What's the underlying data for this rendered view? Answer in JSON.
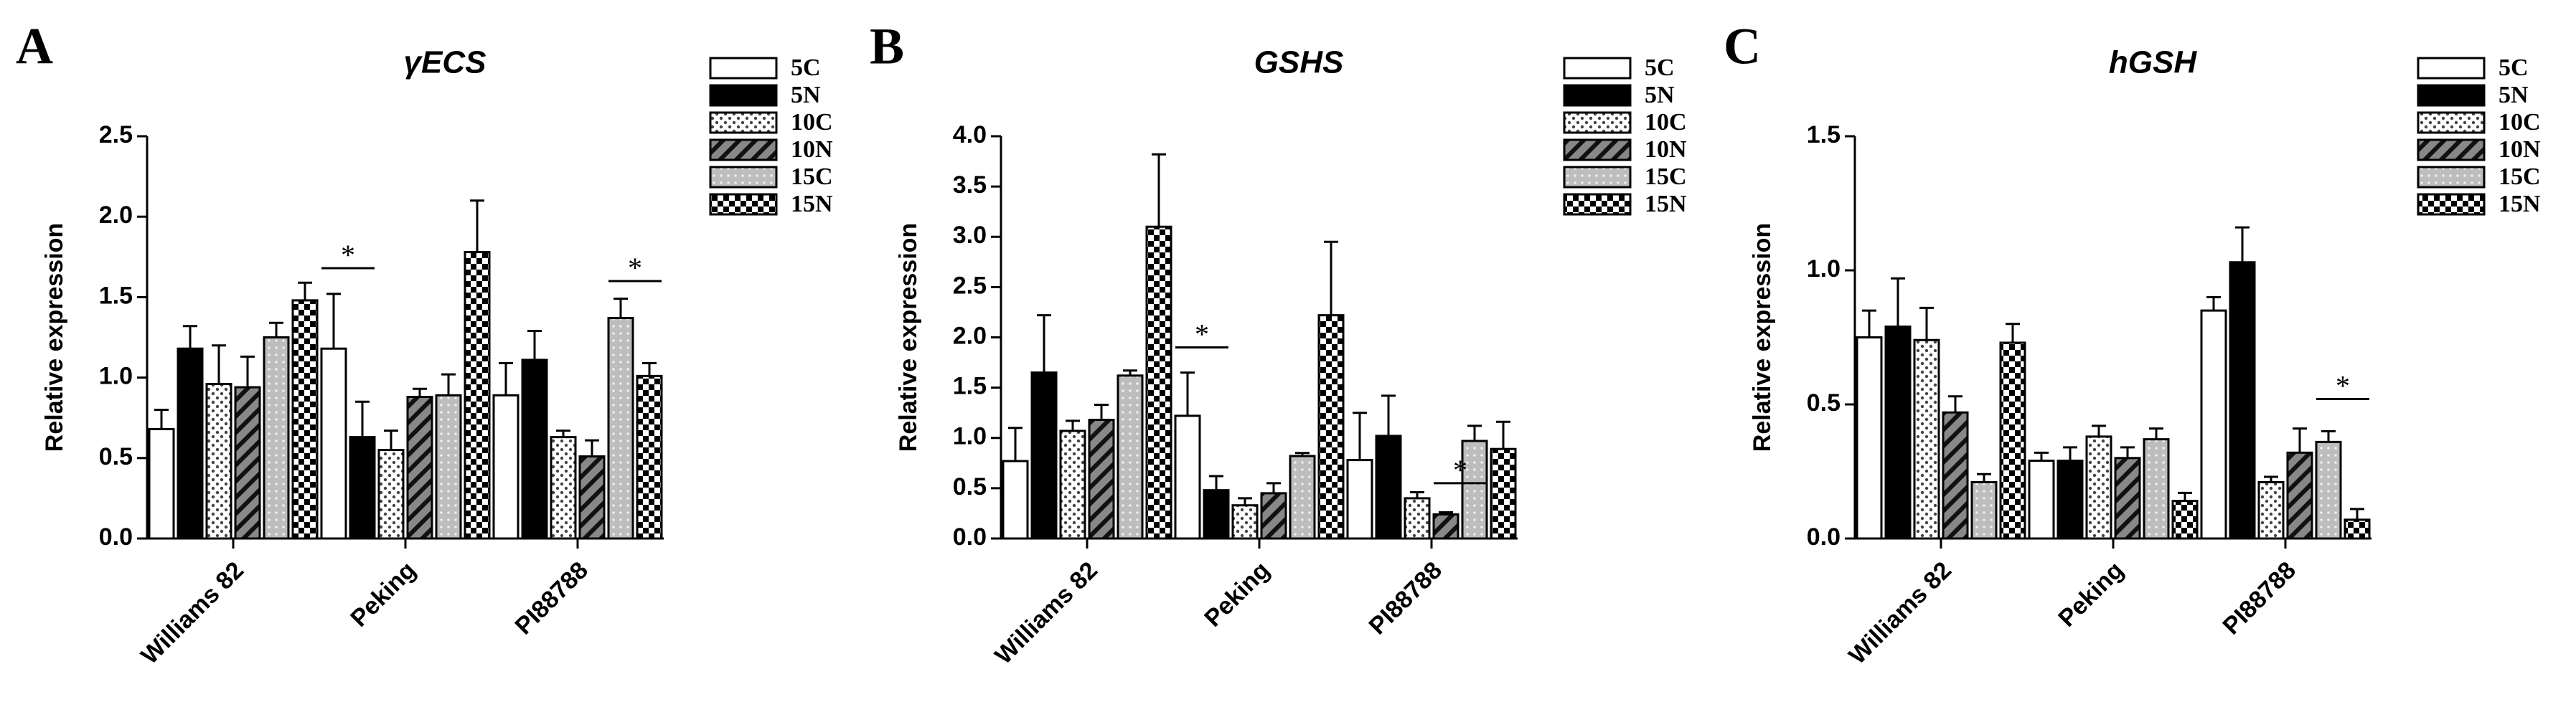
{
  "chart_data": [
    {
      "type": "bar",
      "panel": "A",
      "title": "γECS",
      "y_label": "Relative expression",
      "categories": [
        "Williams 82",
        "Peking",
        "PI88788"
      ],
      "ylim": [
        0,
        2.5
      ],
      "yticks": [
        {
          "value": 0,
          "label": "0.0"
        },
        0.5,
        {
          "value": 1,
          "label": "1.0"
        },
        1.5,
        {
          "value": 2,
          "label": "2.0"
        },
        2.5
      ],
      "series": [
        {
          "name": "5C",
          "color": "#ffffff",
          "pattern": "solid",
          "values": [
            0.68,
            1.18,
            0.89
          ],
          "errors": [
            0.12,
            0.34,
            0.2
          ]
        },
        {
          "name": "5N",
          "color": "#000000",
          "pattern": "solid",
          "values": [
            1.18,
            0.63,
            1.11
          ],
          "errors": [
            0.14,
            0.22,
            0.18
          ]
        },
        {
          "name": "10C",
          "color": "#ffffff",
          "pattern": "dots",
          "values": [
            0.96,
            0.55,
            0.63
          ],
          "errors": [
            0.24,
            0.12,
            0.04
          ]
        },
        {
          "name": "10N",
          "color": "#666666",
          "pattern": "hatch",
          "values": [
            0.94,
            0.88,
            0.51
          ],
          "errors": [
            0.19,
            0.05,
            0.1
          ]
        },
        {
          "name": "15C",
          "color": "#bbbbbb",
          "pattern": "lightdots",
          "values": [
            1.25,
            0.89,
            1.37
          ],
          "errors": [
            0.09,
            0.13,
            0.12
          ]
        },
        {
          "name": "15N",
          "color": "#000000",
          "pattern": "checker",
          "values": [
            1.48,
            1.78,
            1.01
          ],
          "errors": [
            0.11,
            0.32,
            0.08
          ]
        }
      ],
      "annotations": [
        {
          "text": "*",
          "category": 1,
          "series": [
            0,
            1
          ],
          "y": 1.68
        },
        {
          "text": "*",
          "category": 2,
          "series": [
            4,
            5
          ],
          "y": 1.6
        }
      ]
    },
    {
      "type": "bar",
      "panel": "B",
      "title": "GSHS",
      "y_label": "Relative expression",
      "categories": [
        "Williams 82",
        "Peking",
        "PI88788"
      ],
      "ylim": [
        0,
        4
      ],
      "yticks": [
        {
          "value": 0,
          "label": "0.0"
        },
        0.5,
        {
          "value": 1,
          "label": "1.0"
        },
        1.5,
        {
          "value": 2,
          "label": "2.0"
        },
        2.5,
        {
          "value": 3,
          "label": "3.0"
        },
        3.5,
        {
          "value": 4,
          "label": "4.0"
        }
      ],
      "series": [
        {
          "name": "5C",
          "color": "#ffffff",
          "pattern": "solid",
          "values": [
            0.77,
            1.22,
            0.78
          ],
          "errors": [
            0.33,
            0.43,
            0.47
          ]
        },
        {
          "name": "5N",
          "color": "#000000",
          "pattern": "solid",
          "values": [
            1.65,
            0.48,
            1.02
          ],
          "errors": [
            0.57,
            0.14,
            0.4
          ]
        },
        {
          "name": "10C",
          "color": "#ffffff",
          "pattern": "dots",
          "values": [
            1.07,
            0.33,
            0.4
          ],
          "errors": [
            0.1,
            0.07,
            0.06
          ]
        },
        {
          "name": "10N",
          "color": "#666666",
          "pattern": "hatch",
          "values": [
            1.18,
            0.45,
            0.24
          ],
          "errors": [
            0.15,
            0.1,
            0.02
          ]
        },
        {
          "name": "15C",
          "color": "#bbbbbb",
          "pattern": "lightdots",
          "values": [
            1.62,
            0.82,
            0.97
          ],
          "errors": [
            0.05,
            0.03,
            0.15
          ]
        },
        {
          "name": "15N",
          "color": "#000000",
          "pattern": "checker",
          "values": [
            3.1,
            2.22,
            0.89
          ],
          "errors": [
            0.72,
            0.73,
            0.27
          ]
        }
      ],
      "annotations": [
        {
          "text": "*",
          "category": 1,
          "series": [
            0,
            1
          ],
          "y": 1.9
        },
        {
          "text": "*",
          "category": 2,
          "series": [
            3,
            4
          ],
          "y": 0.55
        }
      ]
    },
    {
      "type": "bar",
      "panel": "C",
      "title": "hGSH",
      "y_label": "Relative expression",
      "categories": [
        "Williams 82",
        "Peking",
        "PI88788"
      ],
      "ylim": [
        0,
        1.5
      ],
      "yticks": [
        {
          "value": 0,
          "label": "0.0"
        },
        0.5,
        {
          "value": 1,
          "label": "1.0"
        },
        1.5
      ],
      "series": [
        {
          "name": "5C",
          "color": "#ffffff",
          "pattern": "solid",
          "values": [
            0.75,
            0.29,
            0.85
          ],
          "errors": [
            0.1,
            0.03,
            0.05
          ]
        },
        {
          "name": "5N",
          "color": "#000000",
          "pattern": "solid",
          "values": [
            0.79,
            0.29,
            1.03
          ],
          "errors": [
            0.18,
            0.05,
            0.13
          ]
        },
        {
          "name": "10C",
          "color": "#ffffff",
          "pattern": "dots",
          "values": [
            0.74,
            0.38,
            0.21
          ],
          "errors": [
            0.12,
            0.04,
            0.02
          ]
        },
        {
          "name": "10N",
          "color": "#666666",
          "pattern": "hatch",
          "values": [
            0.47,
            0.3,
            0.32
          ],
          "errors": [
            0.06,
            0.04,
            0.09
          ]
        },
        {
          "name": "15C",
          "color": "#bbbbbb",
          "pattern": "lightdots",
          "values": [
            0.21,
            0.37,
            0.36
          ],
          "errors": [
            0.03,
            0.04,
            0.04
          ]
        },
        {
          "name": "15N",
          "color": "#000000",
          "pattern": "checker",
          "values": [
            0.73,
            0.14,
            0.07
          ],
          "errors": [
            0.07,
            0.03,
            0.04
          ]
        }
      ],
      "annotations": [
        {
          "text": "*",
          "category": 2,
          "series": [
            4,
            5
          ],
          "y": 0.52
        }
      ]
    }
  ]
}
